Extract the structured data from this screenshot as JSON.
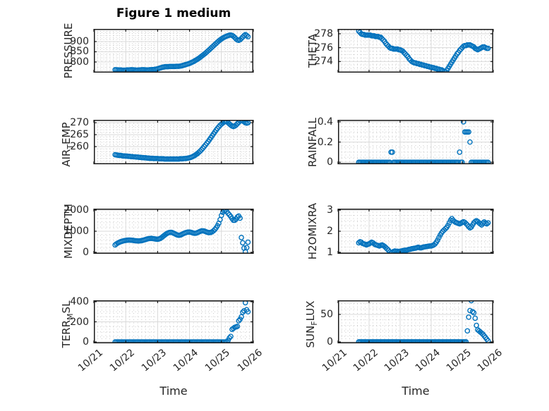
{
  "figure_title": "Figure 1 medium",
  "colors": {
    "marker": "#0072BD",
    "axis": "#1a1a1a",
    "tick_label": "#262626",
    "grid_major": "#d9d9d9",
    "grid_minor": "#c9c9c9"
  },
  "chart_data": {
    "type": "scatter",
    "layout": "4x2-subplot-grid",
    "xlabel": "Time",
    "x_tick_labels": [
      "10/21",
      "10/22",
      "10/23",
      "10/24",
      "10/25",
      "10/26"
    ],
    "x_unit": "hours since 10/21 00:00",
    "x_range_days": [
      0,
      5
    ],
    "grid": "major-solid-plus-dotted-minor",
    "marker": {
      "style": "open-circle",
      "color": "#0072BD"
    },
    "x_hours": [
      16,
      17,
      18,
      19,
      20,
      21,
      22,
      23,
      24,
      25,
      26,
      27,
      28,
      29,
      30,
      31,
      32,
      33,
      34,
      35,
      36,
      37,
      38,
      39,
      40,
      41,
      42,
      43,
      44,
      45,
      46,
      47,
      48,
      49,
      50,
      51,
      52,
      53,
      54,
      55,
      56,
      57,
      58,
      59,
      60,
      61,
      62,
      63,
      64,
      65,
      66,
      67,
      68,
      69,
      70,
      71,
      72,
      73,
      74,
      75,
      76,
      77,
      78,
      79,
      80,
      81,
      82,
      83,
      84,
      85,
      86,
      87,
      88,
      89,
      90,
      91,
      92,
      93,
      94,
      95,
      96,
      97,
      98,
      99,
      100,
      101,
      102,
      103,
      104,
      105,
      106,
      107,
      108,
      109,
      110,
      111,
      112,
      113,
      114,
      115,
      116
    ],
    "subplots": [
      {
        "name": "PRESSURE",
        "ylabel_parts": [
          {
            "text": "PRESSURE",
            "sub": false
          }
        ],
        "yticks": [
          800,
          850,
          900
        ],
        "ylim": [
          748,
          962
        ],
        "yminor": 10,
        "values": [
          762,
          762,
          761,
          761,
          761,
          760,
          760,
          760,
          760,
          761,
          761,
          761,
          762,
          762,
          761,
          761,
          760,
          760,
          761,
          761,
          762,
          762,
          762,
          761,
          761,
          761,
          762,
          762,
          763,
          763,
          764,
          765,
          767,
          769,
          771,
          773,
          775,
          776,
          777,
          777,
          777,
          778,
          778,
          778,
          778,
          778,
          779,
          779,
          779,
          780,
          781,
          783,
          785,
          787,
          789,
          791,
          793,
          796,
          799,
          802,
          806,
          810,
          814,
          818,
          823,
          828,
          833,
          838,
          843,
          849,
          855,
          861,
          867,
          873,
          879,
          885,
          891,
          897,
          903,
          908,
          913,
          917,
          921,
          924,
          927,
          929,
          931,
          932,
          930,
          926,
          920,
          913,
          908,
          906,
          909,
          915,
          922,
          929,
          934,
          930,
          924
        ]
      },
      {
        "name": "THETA",
        "ylabel_parts": [
          {
            "text": "THETA",
            "sub": false
          }
        ],
        "yticks": [
          274,
          276,
          278
        ],
        "ylim": [
          272.4,
          278.7
        ],
        "yminor": 0.5,
        "values": [
          278.4,
          278.2,
          278.0,
          277.9,
          277.9,
          277.8,
          277.8,
          277.8,
          277.8,
          277.8,
          277.7,
          277.7,
          277.7,
          277.6,
          277.6,
          277.6,
          277.5,
          277.5,
          277.3,
          277.1,
          276.9,
          276.6,
          276.4,
          276.2,
          276.0,
          275.9,
          275.9,
          275.8,
          275.8,
          275.8,
          275.8,
          275.7,
          275.7,
          275.6,
          275.5,
          275.3,
          275.1,
          274.9,
          274.7,
          274.4,
          274.2,
          274.0,
          273.9,
          273.8,
          273.8,
          273.7,
          273.7,
          273.6,
          273.6,
          273.5,
          273.5,
          273.4,
          273.4,
          273.3,
          273.3,
          273.2,
          273.2,
          273.1,
          273.1,
          273.0,
          273.0,
          272.9,
          272.9,
          272.8,
          272.8,
          272.7,
          272.6,
          272.5,
          272.7,
          273.0,
          273.3,
          273.6,
          273.9,
          274.2,
          274.5,
          274.8,
          275.1,
          275.3,
          275.6,
          275.8,
          276.0,
          276.2,
          276.3,
          276.3,
          276.4,
          276.4,
          276.4,
          276.3,
          276.2,
          276.1,
          275.9,
          275.8,
          275.7,
          275.8,
          275.9,
          276.0,
          276.1,
          276.1,
          276.0,
          275.9,
          275.9
        ]
      },
      {
        "name": "AIR_TEMP",
        "ylabel_parts": [
          {
            "text": "AIR",
            "sub": false
          },
          {
            "text": "T",
            "sub": true
          },
          {
            "text": "EMP",
            "sub": false
          }
        ],
        "yticks": [
          260,
          265,
          270
        ],
        "ylim": [
          252.6,
          271.2
        ],
        "yminor": 1,
        "values": [
          256.6,
          256.5,
          256.4,
          256.3,
          256.3,
          256.2,
          256.1,
          256.1,
          256.0,
          256.0,
          255.9,
          255.9,
          255.8,
          255.8,
          255.7,
          255.7,
          255.6,
          255.6,
          255.5,
          255.5,
          255.4,
          255.4,
          255.3,
          255.3,
          255.2,
          255.2,
          255.1,
          255.1,
          255.1,
          255.0,
          255.0,
          255.0,
          255.0,
          254.9,
          254.9,
          254.9,
          254.9,
          254.8,
          254.8,
          254.8,
          254.8,
          254.8,
          254.8,
          254.8,
          254.8,
          254.8,
          254.8,
          254.8,
          254.8,
          254.9,
          254.9,
          254.9,
          255.0,
          255.0,
          255.1,
          255.2,
          255.3,
          255.5,
          255.7,
          256.0,
          256.3,
          256.7,
          257.1,
          257.6,
          258.1,
          258.7,
          259.3,
          260.0,
          260.7,
          261.4,
          262.1,
          262.9,
          263.7,
          264.5,
          265.3,
          266.1,
          266.9,
          267.6,
          268.3,
          268.9,
          269.4,
          269.9,
          270.3,
          270.6,
          270.4,
          270.0,
          269.5,
          269.0,
          268.6,
          268.4,
          268.6,
          269.0,
          269.6,
          270.2,
          270.7,
          271.0,
          270.8,
          270.4,
          270.0,
          269.8,
          270.0
        ]
      },
      {
        "name": "RAINFALL",
        "ylabel_parts": [
          {
            "text": "RAINFALL",
            "sub": false
          }
        ],
        "yticks": [
          0,
          0.2,
          0.4
        ],
        "ylim": [
          -0.02,
          0.42
        ],
        "yminor": 0.05,
        "values": [
          0,
          0,
          0,
          0,
          0,
          0,
          0,
          0,
          0,
          0,
          0,
          0,
          0,
          0,
          0,
          0,
          0,
          0,
          0,
          0,
          0,
          0,
          0,
          0,
          0,
          0.1,
          0.1,
          0,
          0,
          0,
          0,
          0,
          0,
          0,
          0,
          0,
          0,
          0,
          0,
          0,
          0,
          0,
          0,
          0,
          0,
          0,
          0,
          0,
          0,
          0,
          0,
          0,
          0,
          0,
          0,
          0,
          0,
          0,
          0,
          0,
          0,
          0,
          0,
          0,
          0,
          0,
          0,
          0,
          0,
          0,
          0,
          0,
          0,
          0,
          0,
          0,
          0,
          0,
          0.1,
          0,
          0,
          0.4,
          0.3,
          0.3,
          0.3,
          0.3,
          0.2,
          0,
          0,
          0,
          0,
          0,
          0,
          0,
          0,
          0,
          0,
          0,
          0,
          0,
          0
        ]
      },
      {
        "name": "MIXDEPTH",
        "ylabel_parts": [
          {
            "text": "MIXDEPTH",
            "sub": false
          }
        ],
        "yticks": [
          0,
          1000,
          2000
        ],
        "ylim": [
          -70,
          2070
        ],
        "yminor": 200,
        "values": [
          350,
          400,
          440,
          470,
          500,
          520,
          540,
          555,
          565,
          575,
          580,
          580,
          575,
          570,
          560,
          550,
          545,
          540,
          540,
          545,
          555,
          570,
          590,
          610,
          630,
          645,
          655,
          660,
          655,
          645,
          635,
          625,
          620,
          635,
          660,
          700,
          750,
          800,
          850,
          895,
          925,
          945,
          950,
          935,
          905,
          875,
          845,
          820,
          810,
          820,
          845,
          875,
          905,
          930,
          950,
          960,
          960,
          950,
          930,
          910,
          900,
          910,
          935,
          965,
          995,
          1015,
          1020,
          1010,
          985,
          960,
          940,
          935,
          945,
          975,
          1020,
          1080,
          1160,
          1260,
          1380,
          1550,
          1750,
          1900,
          1975,
          1990,
          1930,
          1850,
          1780,
          1700,
          1600,
          1520,
          1520,
          1580,
          1680,
          1720,
          1620,
          700,
          450,
          200,
          30,
          220,
          480
        ]
      },
      {
        "name": "H2OMIXRA",
        "ylabel_parts": [
          {
            "text": "H2OMIXRA",
            "sub": false
          }
        ],
        "yticks": [
          1,
          2,
          3
        ],
        "ylim": [
          0.93,
          3.07
        ],
        "yminor": 0.25,
        "values": [
          1.45,
          1.5,
          1.48,
          1.42,
          1.4,
          1.38,
          1.35,
          1.38,
          1.4,
          1.44,
          1.48,
          1.45,
          1.4,
          1.36,
          1.34,
          1.32,
          1.3,
          1.33,
          1.35,
          1.32,
          1.28,
          1.22,
          1.16,
          1.1,
          1.02,
          0.97,
          1.0,
          1.04,
          1.06,
          1.05,
          1.05,
          1.04,
          1.05,
          1.06,
          1.08,
          1.09,
          1.1,
          1.1,
          1.12,
          1.14,
          1.15,
          1.17,
          1.18,
          1.19,
          1.2,
          1.22,
          1.24,
          1.22,
          1.21,
          1.23,
          1.25,
          1.26,
          1.27,
          1.28,
          1.29,
          1.3,
          1.3,
          1.32,
          1.35,
          1.4,
          1.48,
          1.58,
          1.7,
          1.82,
          1.92,
          2.0,
          2.06,
          2.12,
          2.18,
          2.28,
          2.4,
          2.52,
          2.6,
          2.52,
          2.46,
          2.42,
          2.4,
          2.37,
          2.35,
          2.38,
          2.42,
          2.45,
          2.42,
          2.36,
          2.3,
          2.22,
          2.16,
          2.2,
          2.3,
          2.4,
          2.46,
          2.5,
          2.46,
          2.4,
          2.35,
          2.3,
          2.38,
          2.44,
          2.38,
          2.35,
          2.4
        ]
      },
      {
        "name": "TERR_MSL",
        "ylabel_parts": [
          {
            "text": "TERR",
            "sub": false
          },
          {
            "text": "M",
            "sub": true
          },
          {
            "text": "SL",
            "sub": false
          }
        ],
        "yticks": [
          0,
          200,
          400
        ],
        "ylim": [
          -14,
          414
        ],
        "yminor": 50,
        "values": [
          0,
          0,
          0,
          0,
          0,
          0,
          0,
          0,
          0,
          0,
          0,
          0,
          0,
          0,
          0,
          0,
          0,
          0,
          0,
          0,
          0,
          0,
          0,
          0,
          0,
          0,
          0,
          0,
          0,
          0,
          0,
          0,
          0,
          0,
          0,
          0,
          0,
          0,
          0,
          0,
          0,
          0,
          0,
          0,
          0,
          0,
          0,
          0,
          0,
          0,
          0,
          0,
          0,
          0,
          0,
          0,
          0,
          0,
          0,
          0,
          0,
          0,
          0,
          0,
          0,
          0,
          0,
          0,
          0,
          0,
          0,
          0,
          0,
          0,
          0,
          0,
          0,
          0,
          0,
          0,
          0,
          0,
          0,
          0,
          0,
          15,
          40,
          55,
          125,
          135,
          145,
          150,
          155,
          210,
          225,
          250,
          295,
          310,
          390,
          320,
          300
        ]
      },
      {
        "name": "SUN_FLUX",
        "ylabel_parts": [
          {
            "text": "SUN",
            "sub": false
          },
          {
            "text": "F",
            "sub": true
          },
          {
            "text": "LUX",
            "sub": false
          }
        ],
        "yticks": [
          0,
          50
        ],
        "ylim": [
          -2.6,
          75.6
        ],
        "yminor": 10,
        "values": [
          0,
          0,
          0,
          0,
          0,
          0,
          0,
          0,
          0,
          0,
          0,
          0,
          0,
          0,
          0,
          0,
          0,
          0,
          0,
          0,
          0,
          0,
          0,
          0,
          0,
          0,
          0,
          0,
          0,
          0,
          0,
          0,
          0,
          0,
          0,
          0,
          0,
          0,
          0,
          0,
          0,
          0,
          0,
          0,
          0,
          0,
          0,
          0,
          0,
          0,
          0,
          0,
          0,
          0,
          0,
          0,
          0,
          0,
          0,
          0,
          0,
          0,
          0,
          0,
          0,
          0,
          0,
          0,
          0,
          0,
          0,
          0,
          0,
          0,
          0,
          0,
          0,
          0,
          0,
          0,
          0,
          0,
          0,
          0,
          20,
          45,
          57,
          75,
          55,
          53,
          43,
          30,
          22,
          20,
          18,
          16,
          14,
          11,
          8,
          5,
          2
        ]
      }
    ]
  }
}
